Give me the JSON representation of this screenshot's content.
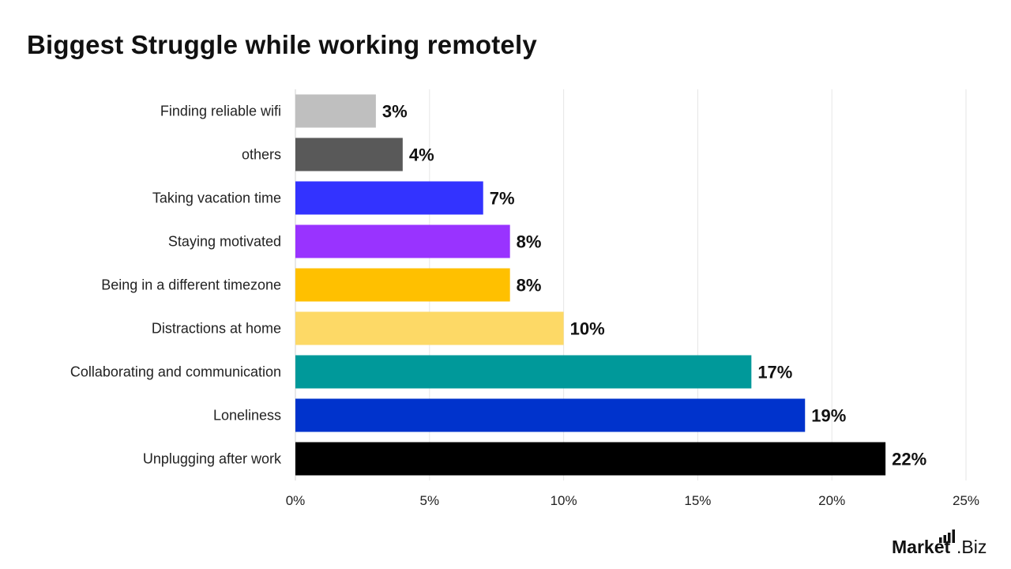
{
  "chart_data": {
    "type": "bar",
    "orientation": "horizontal",
    "title": "Biggest Struggle while working remotely",
    "categories": [
      "Finding reliable wifi",
      "others",
      "Taking vacation time",
      "Staying motivated",
      "Being in a different timezone",
      "Distractions at home",
      "Collaborating and communication",
      "Loneliness",
      "Unplugging after work"
    ],
    "values": [
      3,
      4,
      7,
      8,
      8,
      10,
      17,
      19,
      22
    ],
    "data_labels": [
      "3%",
      "4%",
      "7%",
      "8%",
      "8%",
      "10%",
      "17%",
      "19%",
      "22%"
    ],
    "colors": [
      "#bfbfbf",
      "#595959",
      "#3333ff",
      "#9933ff",
      "#ffc000",
      "#fdd966",
      "#00999a",
      "#0033cc",
      "#000000"
    ],
    "xlim": [
      0,
      25
    ],
    "xticks": [
      0,
      5,
      10,
      15,
      20,
      25
    ],
    "xtick_labels": [
      "0%",
      "5%",
      "10%",
      "15%",
      "20%",
      "25%"
    ],
    "xlabel": "",
    "ylabel": "",
    "grid": "vertical",
    "legend": "none"
  },
  "brand": {
    "text_main": "Market",
    "text_suffix": ".Biz",
    "icon": "bar-chart-icon"
  }
}
